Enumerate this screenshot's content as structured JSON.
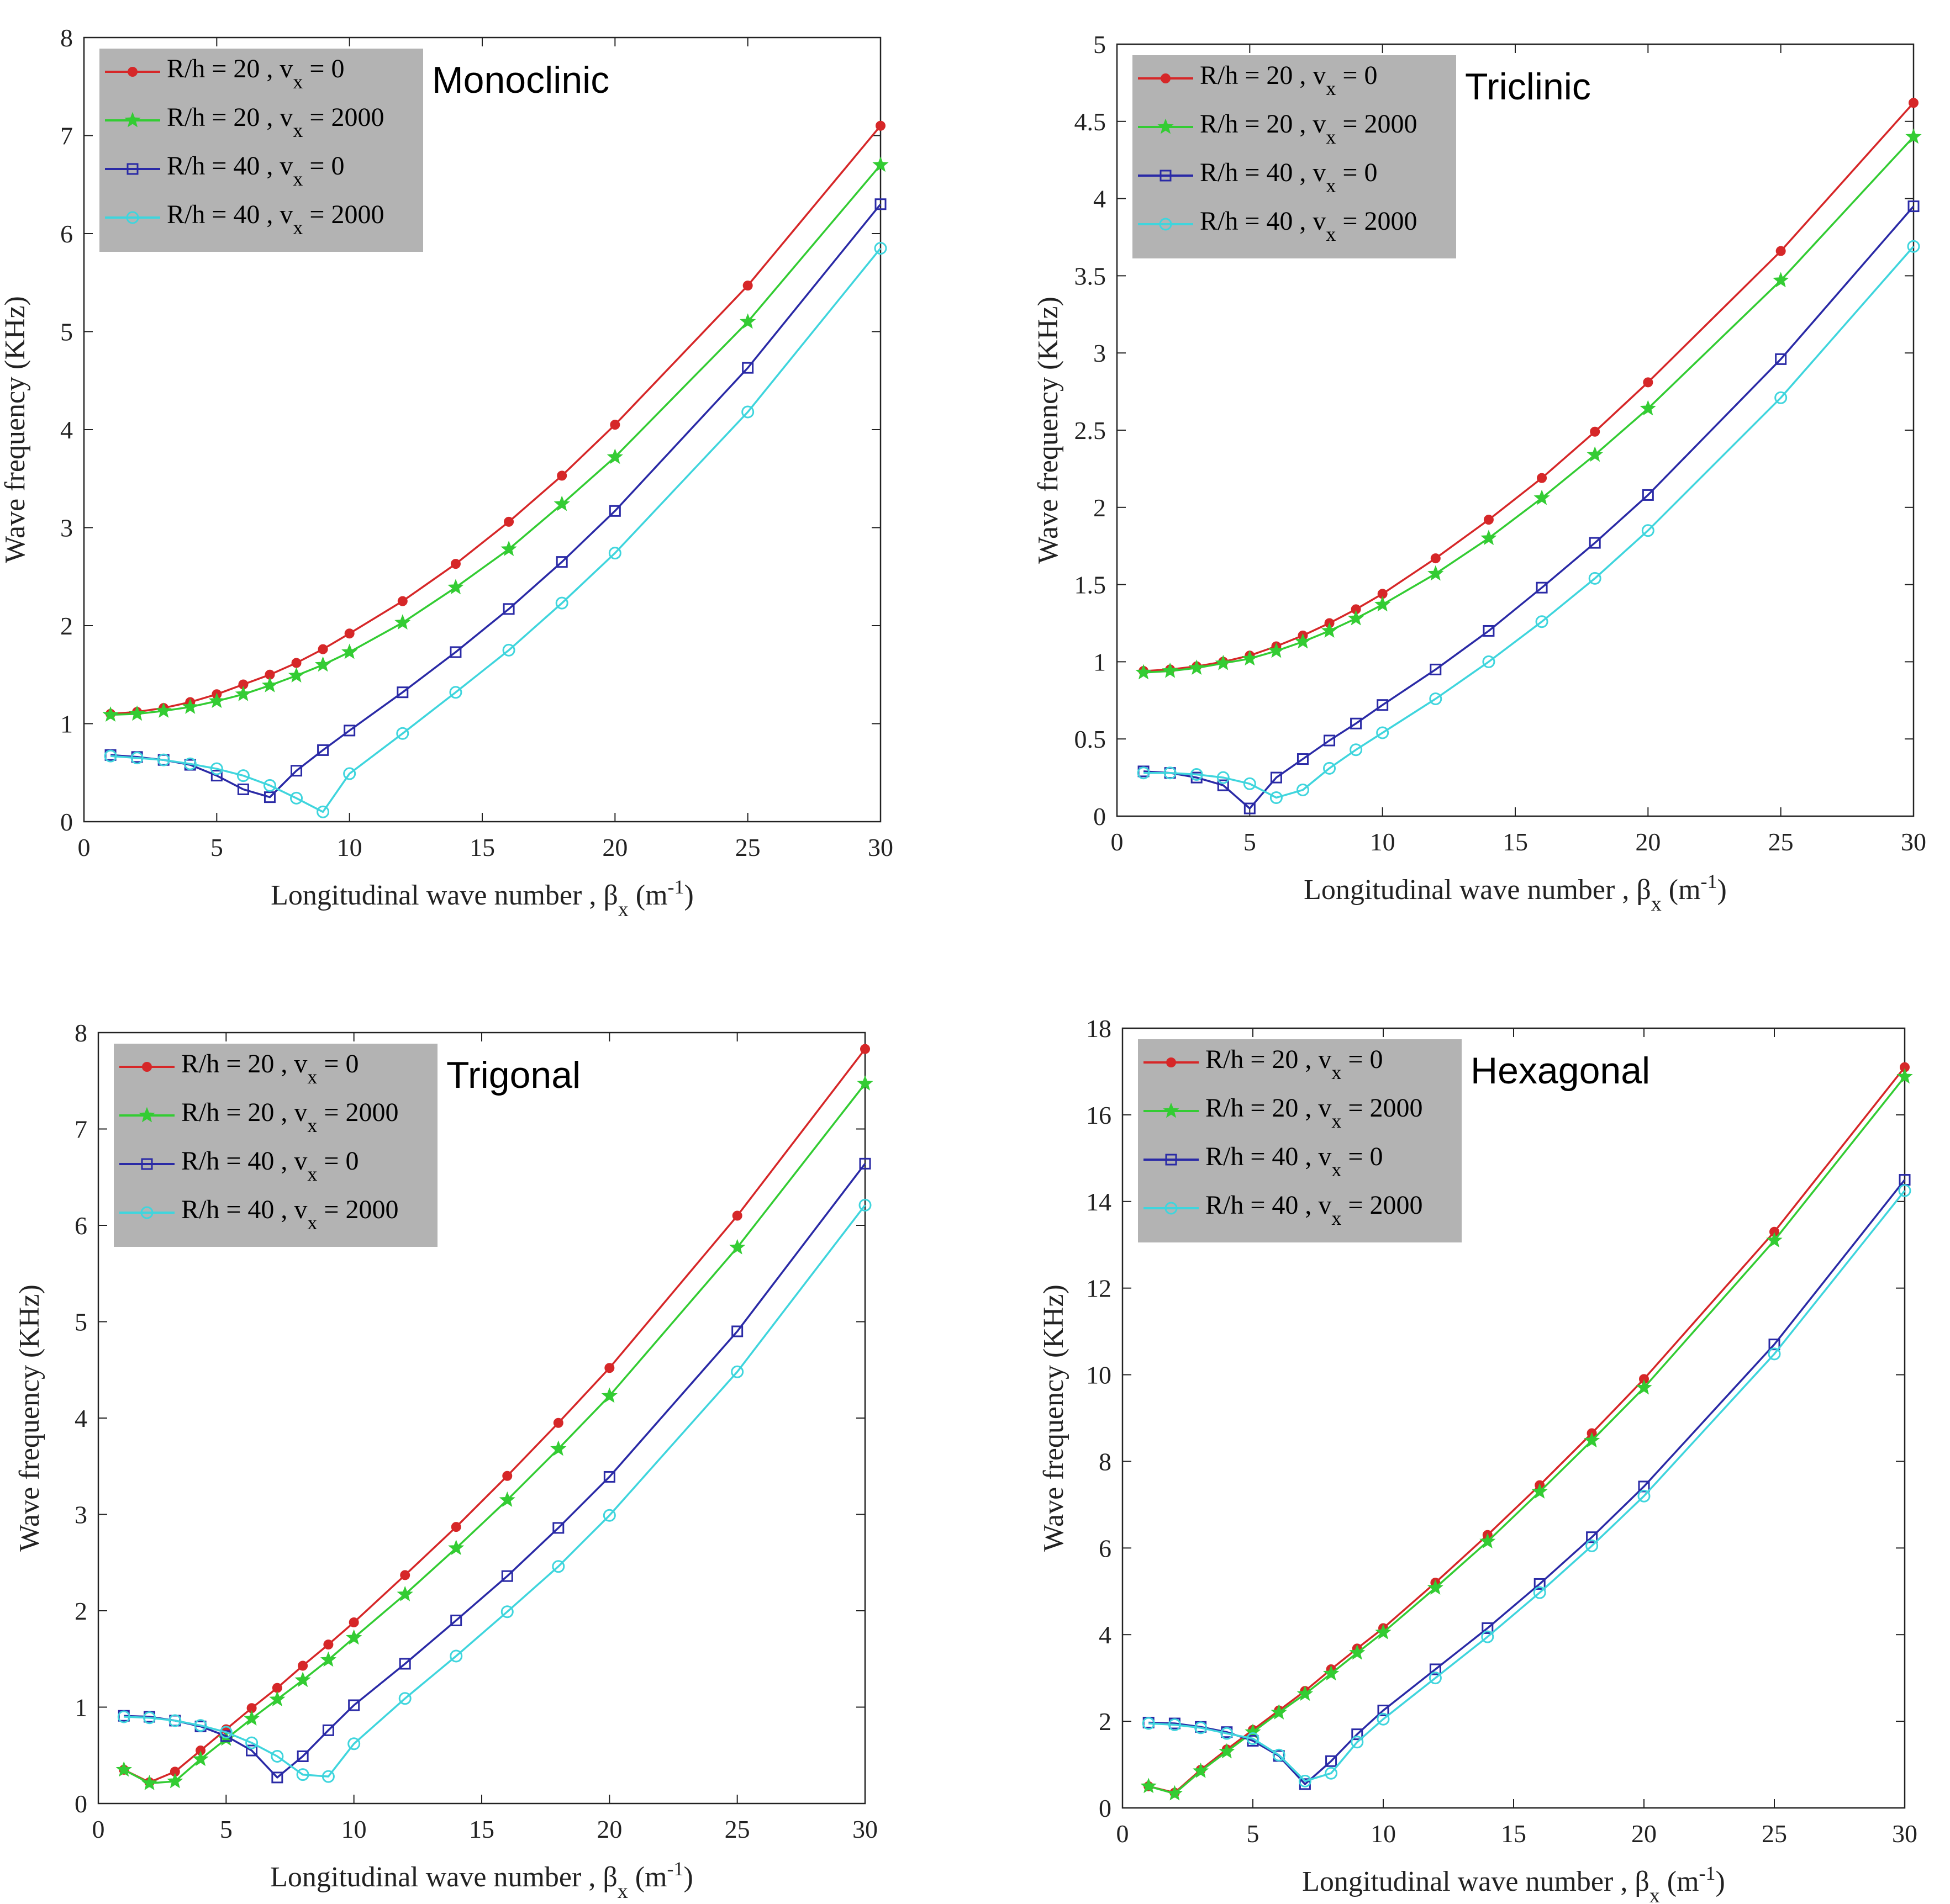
{
  "colors": {
    "red": "#d62728",
    "green": "#33cc33",
    "blue": "#2a2aa6",
    "cyan": "#3fd5dd",
    "legend_bg": "#b3b3b3",
    "axis": "#222222"
  },
  "chart_data": [
    {
      "type": "line",
      "title": "Monoclinic",
      "xlabel": "Longitudinal wave number , βx (m-1)",
      "xlabel_parts": {
        "main": "Longitudinal wave number , β",
        "sub": "x",
        "unit_open": " (m",
        "sup": "-1",
        "unit_close": ")"
      },
      "ylabel": "Wave frequency (KHz)",
      "xlim": [
        0,
        30
      ],
      "ylim": [
        0,
        8
      ],
      "xticks": [
        0,
        5,
        10,
        15,
        20,
        25,
        30
      ],
      "yticks": [
        0,
        1,
        2,
        3,
        4,
        5,
        6,
        7,
        8
      ],
      "ytick_labels": [
        "0",
        "1",
        "2",
        "3",
        "4",
        "5",
        "6",
        "7",
        "8"
      ],
      "legend_position": "top-left",
      "x": [
        1,
        2,
        3,
        4,
        5,
        6,
        7,
        8,
        9,
        10,
        12,
        14,
        16,
        18,
        20,
        25,
        30
      ],
      "series": [
        {
          "name": "R/h = 20 , vx = 0",
          "label_parts": {
            "main": "R/h = 20 , v",
            "sub": "x",
            "rest": " = 0"
          },
          "color": "red",
          "marker": "dot",
          "values": [
            1.1,
            1.12,
            1.16,
            1.22,
            1.3,
            1.4,
            1.5,
            1.62,
            1.76,
            1.92,
            2.25,
            2.63,
            3.06,
            3.53,
            4.05,
            5.47,
            7.1
          ]
        },
        {
          "name": "R/h = 20 , vx = 2000",
          "label_parts": {
            "main": "R/h = 20 , v",
            "sub": "x",
            "rest": " = 2000"
          },
          "color": "green",
          "marker": "star",
          "values": [
            1.09,
            1.1,
            1.13,
            1.17,
            1.23,
            1.3,
            1.39,
            1.49,
            1.6,
            1.73,
            2.03,
            2.39,
            2.78,
            3.24,
            3.72,
            5.1,
            6.7
          ]
        },
        {
          "name": "R/h = 40 , vx = 0",
          "label_parts": {
            "main": "R/h = 40 , v",
            "sub": "x",
            "rest": " = 0"
          },
          "color": "blue",
          "marker": "square",
          "values": [
            0.68,
            0.66,
            0.63,
            0.58,
            0.47,
            0.33,
            0.25,
            0.52,
            0.73,
            0.93,
            1.32,
            1.73,
            2.17,
            2.65,
            3.17,
            4.63,
            6.3
          ]
        },
        {
          "name": "R/h = 40 , vx = 2000",
          "label_parts": {
            "main": "R/h = 40 , v",
            "sub": "x",
            "rest": " = 2000"
          },
          "color": "cyan",
          "marker": "circle",
          "values": [
            0.67,
            0.65,
            0.63,
            0.59,
            0.54,
            0.47,
            0.37,
            0.24,
            0.1,
            0.49,
            0.9,
            1.32,
            1.75,
            2.23,
            2.74,
            4.18,
            5.85
          ]
        }
      ]
    },
    {
      "type": "line",
      "title": "Triclinic",
      "xlabel": "Longitudinal wave number , βx (m-1)",
      "xlabel_parts": {
        "main": "Longitudinal wave number , β",
        "sub": "x",
        "unit_open": " (m",
        "sup": "-1",
        "unit_close": ")"
      },
      "ylabel": "Wave frequency (KHz)",
      "xlim": [
        0,
        30
      ],
      "ylim": [
        0,
        5
      ],
      "xticks": [
        0,
        5,
        10,
        15,
        20,
        25,
        30
      ],
      "yticks": [
        0,
        0.5,
        1,
        1.5,
        2,
        2.5,
        3,
        3.5,
        4,
        4.5,
        5
      ],
      "ytick_labels": [
        "0",
        "0.5",
        "1",
        "1.5",
        "2",
        "2.5",
        "3",
        "3.5",
        "4",
        "4.5",
        "5"
      ],
      "legend_position": "top-left",
      "x": [
        1,
        2,
        3,
        4,
        5,
        6,
        7,
        8,
        9,
        10,
        12,
        14,
        16,
        18,
        20,
        25,
        30
      ],
      "series": [
        {
          "name": "R/h = 20 , vx = 0",
          "label_parts": {
            "main": "R/h = 20 , v",
            "sub": "x",
            "rest": " = 0"
          },
          "color": "red",
          "marker": "dot",
          "values": [
            0.94,
            0.95,
            0.97,
            1.0,
            1.04,
            1.1,
            1.17,
            1.25,
            1.34,
            1.44,
            1.67,
            1.92,
            2.19,
            2.49,
            2.81,
            3.66,
            4.62
          ]
        },
        {
          "name": "R/h = 20 , vx = 2000",
          "label_parts": {
            "main": "R/h = 20 , v",
            "sub": "x",
            "rest": " = 2000"
          },
          "color": "green",
          "marker": "star",
          "values": [
            0.93,
            0.94,
            0.96,
            0.99,
            1.02,
            1.07,
            1.13,
            1.2,
            1.28,
            1.37,
            1.57,
            1.8,
            2.06,
            2.34,
            2.64,
            3.47,
            4.4
          ]
        },
        {
          "name": "R/h = 40 , vx = 0",
          "label_parts": {
            "main": "R/h = 40 , v",
            "sub": "x",
            "rest": " = 0"
          },
          "color": "blue",
          "marker": "square",
          "values": [
            0.29,
            0.28,
            0.25,
            0.2,
            0.05,
            0.25,
            0.37,
            0.49,
            0.6,
            0.72,
            0.95,
            1.2,
            1.48,
            1.77,
            2.08,
            2.96,
            3.95
          ]
        },
        {
          "name": "R/h = 40 , vx = 2000",
          "label_parts": {
            "main": "R/h = 40 , v",
            "sub": "x",
            "rest": " = 2000"
          },
          "color": "cyan",
          "marker": "circle",
          "values": [
            0.28,
            0.28,
            0.27,
            0.25,
            0.21,
            0.12,
            0.17,
            0.31,
            0.43,
            0.54,
            0.76,
            1.0,
            1.26,
            1.54,
            1.85,
            2.71,
            3.69
          ]
        }
      ]
    },
    {
      "type": "line",
      "title": "Trigonal",
      "xlabel": "Longitudinal wave number , βx (m-1)",
      "xlabel_parts": {
        "main": "Longitudinal wave number , β",
        "sub": "x",
        "unit_open": " (m",
        "sup": "-1",
        "unit_close": ")"
      },
      "ylabel": "Wave frequency (KHz)",
      "xlim": [
        0,
        30
      ],
      "ylim": [
        0,
        8
      ],
      "xticks": [
        0,
        5,
        10,
        15,
        20,
        25,
        30
      ],
      "yticks": [
        0,
        1,
        2,
        3,
        4,
        5,
        6,
        7,
        8
      ],
      "ytick_labels": [
        "0",
        "1",
        "2",
        "3",
        "4",
        "5",
        "6",
        "7",
        "8"
      ],
      "legend_position": "top-left",
      "x": [
        1,
        2,
        3,
        4,
        5,
        6,
        7,
        8,
        9,
        10,
        12,
        14,
        16,
        18,
        20,
        25,
        30
      ],
      "series": [
        {
          "name": "R/h = 20 , vx = 0",
          "label_parts": {
            "main": "R/h = 20 , v",
            "sub": "x",
            "rest": " = 0"
          },
          "color": "red",
          "marker": "dot",
          "values": [
            0.35,
            0.22,
            0.33,
            0.55,
            0.77,
            0.99,
            1.2,
            1.43,
            1.65,
            1.88,
            2.37,
            2.87,
            3.4,
            3.95,
            4.52,
            6.1,
            7.83
          ]
        },
        {
          "name": "R/h = 20 , vx = 2000",
          "label_parts": {
            "main": "R/h = 20 , v",
            "sub": "x",
            "rest": " = 2000"
          },
          "color": "green",
          "marker": "star",
          "values": [
            0.35,
            0.21,
            0.23,
            0.46,
            0.67,
            0.88,
            1.08,
            1.28,
            1.49,
            1.72,
            2.17,
            2.65,
            3.15,
            3.68,
            4.23,
            5.77,
            7.47
          ]
        },
        {
          "name": "R/h = 40 , vx = 0",
          "label_parts": {
            "main": "R/h = 40 , v",
            "sub": "x",
            "rest": " = 0"
          },
          "color": "blue",
          "marker": "square",
          "values": [
            0.91,
            0.9,
            0.86,
            0.8,
            0.7,
            0.55,
            0.27,
            0.49,
            0.76,
            1.02,
            1.45,
            1.9,
            2.36,
            2.86,
            3.39,
            4.9,
            6.64
          ]
        },
        {
          "name": "R/h = 40 , vx = 2000",
          "label_parts": {
            "main": "R/h = 40 , v",
            "sub": "x",
            "rest": " = 2000"
          },
          "color": "cyan",
          "marker": "circle",
          "values": [
            0.9,
            0.89,
            0.86,
            0.81,
            0.74,
            0.63,
            0.49,
            0.3,
            0.28,
            0.62,
            1.09,
            1.53,
            1.99,
            2.46,
            2.99,
            4.48,
            6.21
          ]
        }
      ]
    },
    {
      "type": "line",
      "title": "Hexagonal",
      "xlabel": "Longitudinal wave number , βx (m-1)",
      "xlabel_parts": {
        "main": "Longitudinal wave number , β",
        "sub": "x",
        "unit_open": " (m",
        "sup": "-1",
        "unit_close": ")"
      },
      "ylabel": "Wave frequency (KHz)",
      "xlim": [
        0,
        30
      ],
      "ylim": [
        0,
        18
      ],
      "xticks": [
        0,
        5,
        10,
        15,
        20,
        25,
        30
      ],
      "yticks": [
        0,
        2,
        4,
        6,
        8,
        10,
        12,
        14,
        16,
        18
      ],
      "ytick_labels": [
        "0",
        "2",
        "4",
        "6",
        "8",
        "10",
        "12",
        "14",
        "16",
        "18"
      ],
      "legend_position": "top-left",
      "x": [
        1,
        2,
        3,
        4,
        5,
        6,
        7,
        8,
        9,
        10,
        12,
        14,
        16,
        18,
        20,
        25,
        30
      ],
      "series": [
        {
          "name": "R/h = 20 , vx = 0",
          "label_parts": {
            "main": "R/h = 20 , v",
            "sub": "x",
            "rest": " = 0"
          },
          "color": "red",
          "marker": "dot",
          "values": [
            0.5,
            0.35,
            0.88,
            1.35,
            1.8,
            2.25,
            2.7,
            3.2,
            3.68,
            4.15,
            5.2,
            6.3,
            7.45,
            8.65,
            9.9,
            13.3,
            17.1
          ]
        },
        {
          "name": "R/h = 20 , vx = 2000",
          "label_parts": {
            "main": "R/h = 20 , v",
            "sub": "x",
            "rest": " = 2000"
          },
          "color": "green",
          "marker": "star",
          "values": [
            0.5,
            0.33,
            0.85,
            1.3,
            1.75,
            2.2,
            2.63,
            3.1,
            3.58,
            4.05,
            5.08,
            6.15,
            7.3,
            8.48,
            9.7,
            13.1,
            16.88
          ]
        },
        {
          "name": "R/h = 40 , vx = 0",
          "label_parts": {
            "main": "R/h = 40 , v",
            "sub": "x",
            "rest": " = 0"
          },
          "color": "blue",
          "marker": "square",
          "values": [
            1.97,
            1.95,
            1.87,
            1.75,
            1.55,
            1.2,
            0.55,
            1.08,
            1.7,
            2.25,
            3.2,
            4.15,
            5.17,
            6.25,
            7.42,
            10.7,
            14.5
          ]
        },
        {
          "name": "R/h = 40 , vx = 2000",
          "label_parts": {
            "main": "R/h = 40 , v",
            "sub": "x",
            "rest": " = 2000"
          },
          "color": "cyan",
          "marker": "circle",
          "values": [
            1.95,
            1.92,
            1.85,
            1.72,
            1.6,
            1.22,
            0.62,
            0.8,
            1.52,
            2.05,
            3.0,
            3.95,
            4.97,
            6.05,
            7.2,
            10.48,
            14.25
          ]
        }
      ]
    }
  ]
}
